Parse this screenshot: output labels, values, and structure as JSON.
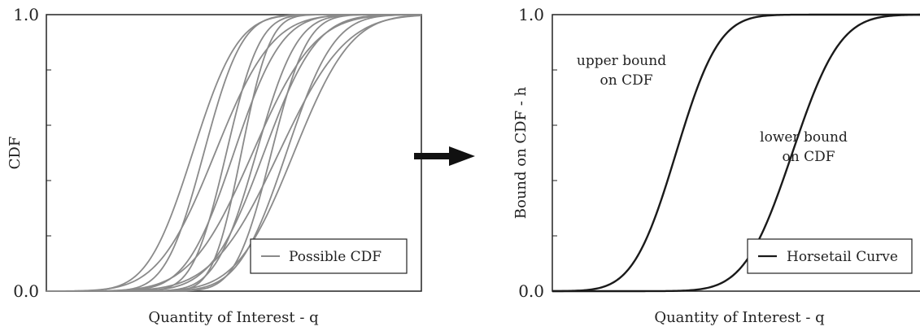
{
  "chart_data": [
    {
      "type": "line",
      "xlabel": "Quantity of Interest - q",
      "ylabel": "CDF",
      "ylim": [
        0,
        1
      ],
      "yticks": [
        "0.0",
        "1.0"
      ],
      "grid": false,
      "legend": {
        "label": "Possible CDF",
        "placement": "bottom-right"
      },
      "series_color": "#8a8a8a",
      "series": [
        {
          "mu": 0.39,
          "sigma": 0.095
        },
        {
          "mu": 0.42,
          "sigma": 0.08
        },
        {
          "mu": 0.45,
          "sigma": 0.12
        },
        {
          "mu": 0.48,
          "sigma": 0.07
        },
        {
          "mu": 0.5,
          "sigma": 0.1
        },
        {
          "mu": 0.52,
          "sigma": 0.06
        },
        {
          "mu": 0.55,
          "sigma": 0.13
        },
        {
          "mu": 0.56,
          "sigma": 0.085
        },
        {
          "mu": 0.58,
          "sigma": 0.11
        },
        {
          "mu": 0.6,
          "sigma": 0.075
        },
        {
          "mu": 0.62,
          "sigma": 0.14
        },
        {
          "mu": 0.64,
          "sigma": 0.1
        },
        {
          "mu": 0.66,
          "sigma": 0.12
        }
      ]
    },
    {
      "type": "line",
      "xlabel": "Quantity of Interest - q",
      "ylabel": "Bound on CDF - h",
      "ylim": [
        0,
        1
      ],
      "yticks": [
        "0.0",
        "1.0"
      ],
      "grid": false,
      "legend": {
        "label": "Horsetail Curve",
        "placement": "bottom-right"
      },
      "series_color": "#1a1a1a",
      "series": [
        {
          "name": "upper bound on CDF",
          "mu": 0.33,
          "sigma": 0.09
        },
        {
          "name": "lower bound on CDF",
          "mu": 0.64,
          "sigma": 0.1
        }
      ],
      "annotations": [
        {
          "lines": [
            "upper bound",
            "on CDF"
          ]
        },
        {
          "lines": [
            "lower bound",
            "on CDF"
          ]
        }
      ]
    }
  ],
  "arrow": {
    "direction": "right",
    "color": "#111111"
  }
}
